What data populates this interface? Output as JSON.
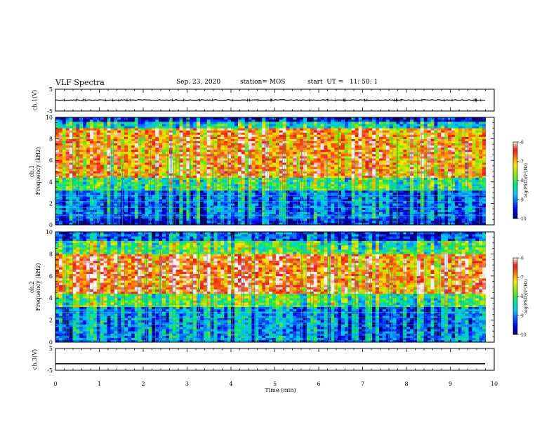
{
  "header": {
    "title": "VLF Spectra",
    "date": "Sep. 23, 2020",
    "station": "station= MOS",
    "start": "start  UT =   11: 50: 1"
  },
  "chart_data": [
    {
      "type": "line",
      "ylabel": "ch.1(V)",
      "ylim": [
        -5,
        5
      ],
      "y_ticks": [
        "5",
        "-5"
      ],
      "values_summary": "noisy trace near 0 V",
      "level": 0
    },
    {
      "type": "heatmap",
      "ylabel_line1": "ch.1",
      "ylabel_line2": "Frequency (kHz)",
      "ylim": [
        0,
        10
      ],
      "y_ticks": [
        "0",
        "2",
        "4",
        "6",
        "8",
        "10"
      ],
      "xlim": [
        0,
        10
      ],
      "color_scale": {
        "label": "log(PSD)(V²/Hz)",
        "range": [
          -10,
          -6
        ],
        "ticks": [
          "-6",
          "-7",
          "-8",
          "-9",
          "-10"
        ]
      },
      "band_summary": [
        {
          "freq_khz": [
            0,
            0.6
          ],
          "log_psd": -9.5
        },
        {
          "freq_khz": [
            0.6,
            3.2
          ],
          "log_psd": -9.0
        },
        {
          "freq_khz": [
            3.2,
            4.5
          ],
          "log_psd": -8.0
        },
        {
          "freq_khz": [
            4.5,
            9.0
          ],
          "log_psd": -6.8
        },
        {
          "freq_khz": [
            9.0,
            9.6
          ],
          "log_psd": -8.3
        },
        {
          "freq_khz": [
            9.6,
            10
          ],
          "log_psd": -9.5
        }
      ]
    },
    {
      "type": "heatmap",
      "ylabel_line1": "ch.2",
      "ylabel_line2": "Frequency (kHz)",
      "ylim": [
        0,
        10
      ],
      "y_ticks": [
        "0",
        "2",
        "4",
        "6",
        "8",
        "10"
      ],
      "xlim": [
        0,
        10
      ],
      "color_scale": {
        "label": "log(PSD)(V²/Hz)",
        "range": [
          -10,
          -6
        ],
        "ticks": [
          "-6",
          "-7",
          "-8",
          "-9",
          "-10"
        ]
      },
      "band_summary": [
        {
          "freq_khz": [
            0,
            0.6
          ],
          "log_psd": -9.0
        },
        {
          "freq_khz": [
            0.6,
            3.2
          ],
          "log_psd": -9.0
        },
        {
          "freq_khz": [
            3.2,
            4.5
          ],
          "log_psd": -8.0
        },
        {
          "freq_khz": [
            4.5,
            8.0
          ],
          "log_psd": -6.7
        },
        {
          "freq_khz": [
            8.0,
            9.2
          ],
          "log_psd": -8.0
        },
        {
          "freq_khz": [
            9.2,
            10
          ],
          "log_psd": -9.2
        }
      ]
    },
    {
      "type": "line",
      "ylabel": "ch.3(V)",
      "ylim": [
        -5,
        5
      ],
      "y_ticks": [
        "5",
        "-5"
      ],
      "xlim": [
        0,
        10
      ],
      "x_ticks": [
        "0",
        "1",
        "2",
        "3",
        "4",
        "5",
        "6",
        "7",
        "8",
        "9",
        "10"
      ],
      "xlabel": "Time (min)",
      "level": -2
    }
  ]
}
